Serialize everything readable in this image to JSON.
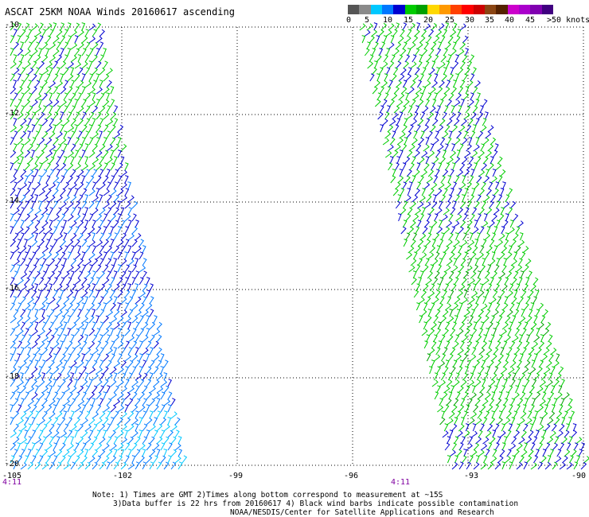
{
  "title": "ASCAT 25KM NOAA Winds 20160617 ascending",
  "colorbar": {
    "colors": [
      "#555555",
      "#8a8a8a",
      "#00c8ff",
      "#0078ff",
      "#0000d0",
      "#00cc00",
      "#00a000",
      "#ffd800",
      "#ff9900",
      "#ff4000",
      "#ff0000",
      "#cc0000",
      "#8b4513",
      "#552200",
      "#cc00cc",
      "#aa00cc",
      "#8000b0",
      "#400080"
    ],
    "labels": [
      "0",
      "5",
      "10",
      "15",
      "20",
      "25",
      "30",
      "35",
      "40",
      "45",
      ">50 knots"
    ]
  },
  "map": {
    "latitude_labels": [
      "-10",
      "-12",
      "-14",
      "-16",
      "-18",
      "-20"
    ],
    "longitude_labels": [
      "-105",
      "-102",
      "-99",
      "-96",
      "-93",
      "-90"
    ],
    "pass_times": [
      "4:11",
      "4:11"
    ],
    "wind_colors": {
      "light_cyan": "#00c8ff",
      "blue": "#0078ff",
      "dark_blue": "#0000d0",
      "green": "#00cc00",
      "dark_green": "#00a000"
    }
  },
  "notes": {
    "line1": "Note: 1) Times are GMT 2)Times along bottom correspond to measurement at ~15S",
    "line2": "3)Data buffer is 22 hrs from 20160617 4) Black wind barbs indicate possible contamination",
    "line3": "NOAA/NESDIS/Center for Satellite Applications and Research"
  }
}
